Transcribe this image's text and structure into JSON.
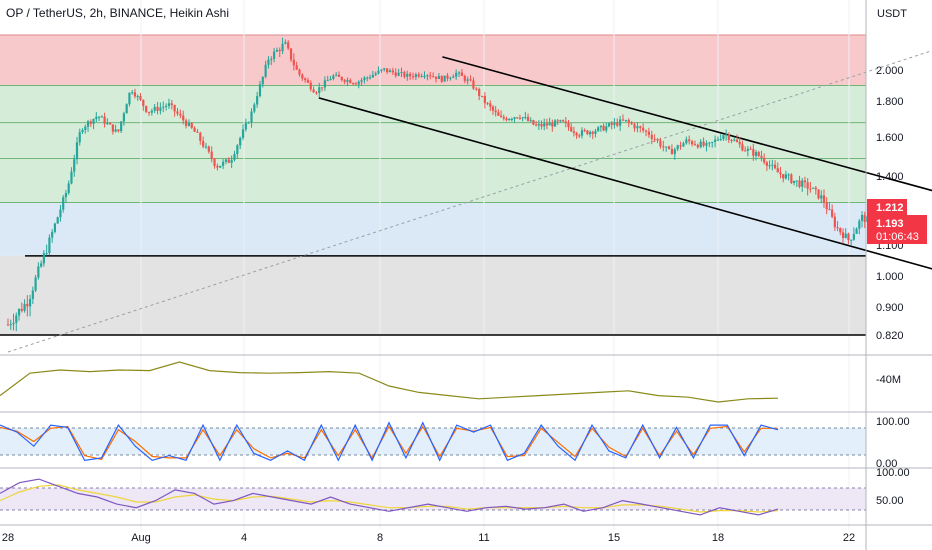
{
  "header": {
    "title": "OP / TetherUS, 2h, BINANCE, Heikin Ashi",
    "currency": "USDT"
  },
  "colors": {
    "up": "#26a69a",
    "down": "#ef5350",
    "zone_top": "#f8c9cb",
    "zone_green": "#d5ecd8",
    "zone_blue": "#dbe9f7",
    "zone_gray": "#e3e3e3",
    "volume_line": "#8a8a1a",
    "stoch_k": "#2962ff",
    "stoch_d": "#ff6d00",
    "rsi_line": "#7e57c2",
    "rsi_ma": "#f0d53a",
    "price_tag": "#f23645"
  },
  "chart_data": [
    {
      "type": "candlestick",
      "title": "OP / TetherUS, 2h, BINANCE, Heikin Ashi",
      "y_axis": {
        "unit": "USDT",
        "ticks": [
          "2.000",
          "1.800",
          "1.600",
          "1.400",
          "1.100",
          "1.000",
          "0.900",
          "0.820"
        ]
      },
      "x_axis": {
        "ticks": [
          "28",
          "Aug",
          "4",
          "8",
          "11",
          "15",
          "18",
          "22"
        ]
      },
      "price_path": [
        [
          0,
          0.85
        ],
        [
          0.6,
          0.92
        ],
        [
          1.2,
          1.1
        ],
        [
          1.8,
          1.35
        ],
        [
          2.2,
          1.65
        ],
        [
          2.7,
          1.72
        ],
        [
          3.3,
          1.62
        ],
        [
          3.7,
          1.88
        ],
        [
          4.2,
          1.74
        ],
        [
          4.8,
          1.78
        ],
        [
          5.6,
          1.62
        ],
        [
          6.2,
          1.45
        ],
        [
          6.6,
          1.48
        ],
        [
          7.2,
          1.72
        ],
        [
          7.7,
          2.05
        ],
        [
          8.2,
          2.12
        ],
        [
          8.6,
          1.98
        ],
        [
          9.1,
          1.86
        ],
        [
          9.6,
          1.96
        ],
        [
          10.3,
          1.92
        ],
        [
          11.1,
          2.0
        ],
        [
          11.8,
          1.96
        ],
        [
          12.3,
          1.98
        ],
        [
          12.8,
          1.94
        ],
        [
          13.2,
          1.98
        ],
        [
          13.6,
          1.92
        ],
        [
          14.0,
          1.8
        ],
        [
          14.5,
          1.7
        ],
        [
          15.1,
          1.72
        ],
        [
          15.6,
          1.66
        ],
        [
          16.4,
          1.68
        ],
        [
          16.9,
          1.62
        ],
        [
          17.5,
          1.64
        ],
        [
          18.3,
          1.69
        ],
        [
          19.0,
          1.62
        ],
        [
          19.6,
          1.52
        ],
        [
          20.1,
          1.58
        ],
        [
          20.7,
          1.55
        ],
        [
          21.2,
          1.62
        ],
        [
          21.8,
          1.54
        ],
        [
          22.3,
          1.5
        ],
        [
          22.8,
          1.42
        ],
        [
          23.3,
          1.38
        ],
        [
          23.8,
          1.35
        ],
        [
          24.2,
          1.3
        ],
        [
          24.6,
          1.18
        ],
        [
          25.0,
          1.12
        ],
        [
          25.4,
          1.22
        ],
        [
          25.8,
          1.19
        ]
      ],
      "current_price": "1.212",
      "last_price": "1.193",
      "countdown": "01:06:43",
      "horizontal_levels": [
        {
          "price": 1.065,
          "color": "#000000"
        },
        {
          "price": 0.82,
          "color": "#000000"
        }
      ],
      "zone_lines": [
        2.16,
        1.9,
        1.68,
        1.49,
        1.285
      ],
      "channel": {
        "upper": [
          [
            12.8,
            2.06
          ],
          [
            29,
            1.28
          ]
        ],
        "lower": [
          [
            9.2,
            1.82
          ],
          [
            29,
            0.98
          ]
        ]
      },
      "diagonal_dashed": [
        [
          0,
          0.78
        ],
        [
          29,
          2.16
        ]
      ]
    },
    {
      "type": "line",
      "panel": "volume",
      "y_axis": {
        "ticks": [
          "40M"
        ]
      },
      "values": [
        0.2,
        0.9,
        1.0,
        0.95,
        1.0,
        0.98,
        1.25,
        0.98,
        0.92,
        0.9,
        0.92,
        0.95,
        0.9,
        0.5,
        0.3,
        0.2,
        0.1,
        0.15,
        0.2,
        0.25,
        0.3,
        0.35,
        0.2,
        0.15,
        0.0,
        0.1,
        0.12
      ]
    },
    {
      "type": "line",
      "panel": "stochastic",
      "y_axis": {
        "ticks": [
          "100.00",
          "0.00"
        ]
      },
      "series": [
        {
          "values": [
            85,
            70,
            40,
            85,
            80,
            10,
            15,
            85,
            40,
            10,
            20,
            10,
            85,
            10,
            85,
            25,
            10,
            30,
            10,
            85,
            10,
            85,
            10,
            90,
            15,
            90,
            10,
            85,
            70,
            85,
            10,
            25,
            85,
            40,
            10,
            85,
            30,
            15,
            85,
            15,
            80,
            15,
            85,
            85,
            20,
            85,
            75
          ]
        },
        {
          "values": [
            80,
            72,
            50,
            78,
            82,
            20,
            12,
            75,
            50,
            18,
            15,
            15,
            75,
            20,
            75,
            35,
            15,
            25,
            15,
            75,
            20,
            75,
            15,
            82,
            25,
            82,
            18,
            78,
            72,
            80,
            18,
            20,
            78,
            48,
            18,
            78,
            38,
            18,
            78,
            20,
            72,
            22,
            78,
            82,
            28,
            78,
            78
          ]
        }
      ]
    },
    {
      "type": "line",
      "panel": "rsi",
      "y_axis": {
        "ticks": [
          "100.00",
          "50.00"
        ]
      },
      "series": [
        {
          "values": [
            60,
            75,
            80,
            70,
            60,
            55,
            45,
            40,
            50,
            65,
            60,
            45,
            50,
            60,
            55,
            50,
            45,
            55,
            45,
            40,
            35,
            40,
            45,
            40,
            35,
            40,
            42,
            38,
            40,
            45,
            35,
            40,
            50,
            45,
            40,
            35,
            30,
            40,
            35,
            30,
            38
          ]
        },
        {
          "values": [
            50,
            62,
            70,
            72,
            65,
            60,
            55,
            48,
            48,
            55,
            58,
            52,
            50,
            55,
            56,
            52,
            48,
            50,
            48,
            44,
            40,
            40,
            42,
            42,
            38,
            40,
            40,
            40,
            40,
            42,
            40,
            40,
            44,
            44,
            42,
            38,
            34,
            36,
            36,
            34,
            36
          ]
        }
      ]
    }
  ]
}
